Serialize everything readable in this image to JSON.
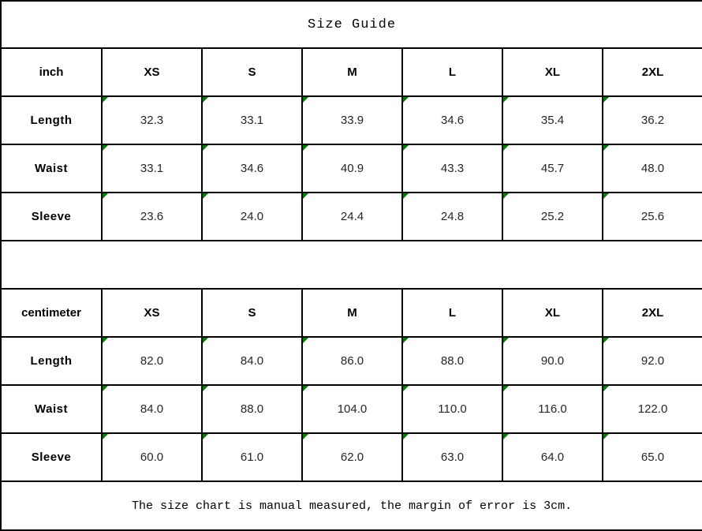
{
  "title": "Size Guide",
  "footer": {
    "note": "The size chart is manual measured, the margin of error is 3cm."
  },
  "colors": {
    "border": "#000000",
    "cell_marker_green": "#008000",
    "value_text": "#262626",
    "label_text": "#000000"
  },
  "icons": {
    "cell_marker": "spreadsheet-corner-triangle-icon"
  },
  "chart_data": {
    "type": "table",
    "title": "Size Guide",
    "columns": [
      "XS",
      "S",
      "M",
      "L",
      "XL",
      "2XL"
    ],
    "sections": [
      {
        "unit": "inch",
        "rows": [
          {
            "label": "Length",
            "values": [
              "32.3",
              "33.1",
              "33.9",
              "34.6",
              "35.4",
              "36.2"
            ]
          },
          {
            "label": "Waist",
            "values": [
              "33.1",
              "34.6",
              "40.9",
              "43.3",
              "45.7",
              "48.0"
            ]
          },
          {
            "label": "Sleeve",
            "values": [
              "23.6",
              "24.0",
              "24.4",
              "24.8",
              "25.2",
              "25.6"
            ]
          }
        ]
      },
      {
        "unit": "centimeter",
        "rows": [
          {
            "label": "Length",
            "values": [
              "82.0",
              "84.0",
              "86.0",
              "88.0",
              "90.0",
              "92.0"
            ]
          },
          {
            "label": "Waist",
            "values": [
              "84.0",
              "88.0",
              "104.0",
              "110.0",
              "116.0",
              "122.0"
            ]
          },
          {
            "label": "Sleeve",
            "values": [
              "60.0",
              "61.0",
              "62.0",
              "63.0",
              "64.0",
              "65.0"
            ]
          }
        ]
      }
    ],
    "note": "The size chart is manual measured, the margin of error is 3cm."
  }
}
